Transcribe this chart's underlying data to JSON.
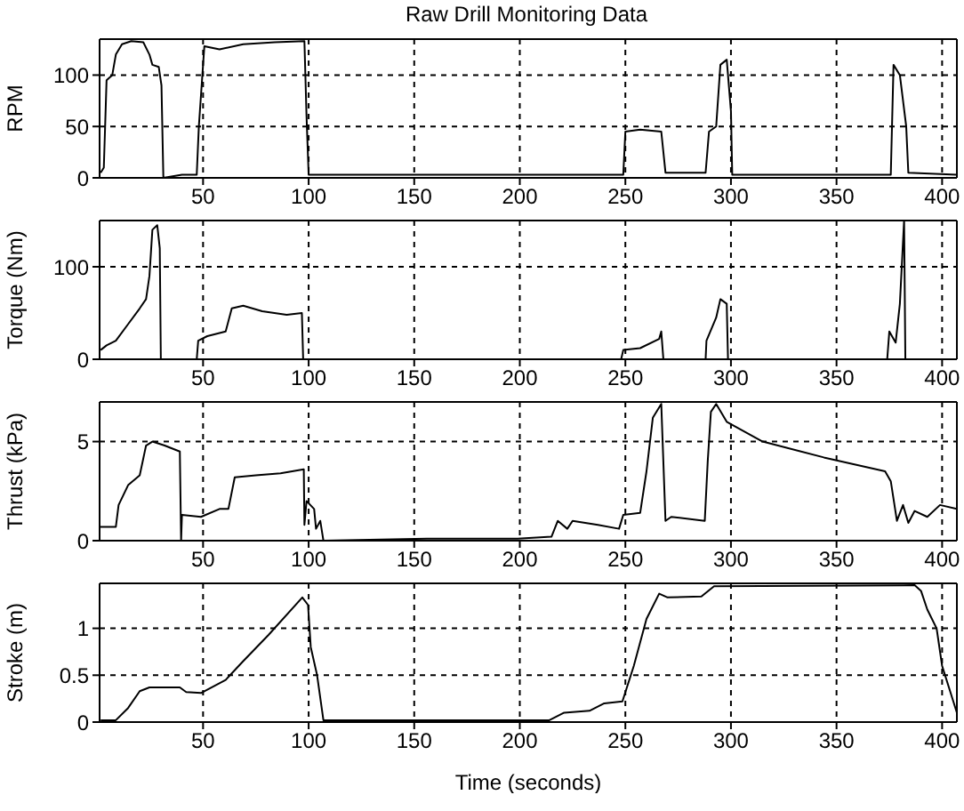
{
  "chart_data": [
    {
      "type": "line",
      "title": "Raw Drill Monitoring Data",
      "ylabel": "RPM",
      "xlim": [
        1,
        407
      ],
      "xticks": [
        50,
        100,
        150,
        200,
        250,
        300,
        350,
        400
      ],
      "ylim": [
        0,
        135
      ],
      "yticks": [
        0,
        50,
        100
      ],
      "grid": true,
      "x": [
        1.5,
        3,
        4.3,
        7,
        8.7,
        11.6,
        16,
        21.7,
        24.6,
        26,
        29,
        30.3,
        31.2,
        40,
        47,
        48,
        50.6,
        57.8,
        69,
        84,
        98,
        99,
        100,
        150,
        200,
        249,
        250,
        257,
        267,
        269,
        288,
        289.6,
        293,
        295,
        298,
        300,
        300.6,
        340,
        375.7,
        377,
        380,
        383,
        384,
        407
      ],
      "series": [
        {
          "color": "#000000",
          "values": [
            5,
            10,
            95,
            100,
            120,
            130,
            133,
            132,
            120,
            110,
            108,
            90,
            0,
            3,
            3,
            50,
            128,
            125,
            130,
            132,
            133,
            60,
            3,
            3,
            3,
            3,
            45,
            47,
            45,
            5,
            5,
            45,
            50,
            110,
            115,
            65,
            3,
            3,
            3,
            110,
            100,
            50,
            5,
            3
          ]
        }
      ]
    },
    {
      "type": "line",
      "ylabel": "Torque (Nm)",
      "xlim": [
        1,
        407
      ],
      "xticks": [
        50,
        100,
        150,
        200,
        250,
        300,
        350,
        400
      ],
      "ylim": [
        0,
        150
      ],
      "yticks": [
        0,
        100
      ],
      "grid": true,
      "x": [
        1.5,
        4.3,
        8.7,
        14.5,
        20,
        23,
        24.6,
        26,
        28.3,
        29.5,
        30,
        47,
        47.7,
        52,
        60.7,
        63.6,
        69,
        78,
        89.6,
        96.8,
        97.4,
        248,
        249,
        257,
        266,
        267,
        268,
        288,
        288.4,
        293,
        295,
        298,
        298.6,
        374,
        375,
        378,
        380,
        382,
        382.6,
        407
      ],
      "series": [
        {
          "color": "#000000",
          "values": [
            10,
            15,
            20,
            38,
            55,
            65,
            90,
            140,
            145,
            120,
            0,
            0,
            20,
            25,
            30,
            55,
            58,
            52,
            48,
            50,
            0,
            0,
            10,
            12,
            22,
            30,
            0,
            0,
            20,
            45,
            65,
            60,
            0,
            0,
            30,
            18,
            60,
            150,
            0,
            0
          ]
        }
      ]
    },
    {
      "type": "line",
      "ylabel": "Thrust (kPa)",
      "xlim": [
        1,
        407
      ],
      "xticks": [
        50,
        100,
        150,
        200,
        250,
        300,
        350,
        400
      ],
      "ylim": [
        0,
        7
      ],
      "yticks": [
        0,
        5
      ],
      "grid": true,
      "x": [
        1.4,
        8.7,
        10,
        14.5,
        20,
        23,
        26,
        31.8,
        39,
        39.6,
        40,
        49,
        57.8,
        62,
        65,
        75,
        86.7,
        97.7,
        98,
        99,
        102.6,
        103.5,
        105.5,
        107,
        156,
        199,
        215,
        218,
        222.5,
        225,
        237,
        247,
        249,
        257,
        260,
        263,
        267,
        269,
        271.7,
        287.6,
        289,
        290.5,
        293,
        298,
        315,
        344,
        373,
        375.7,
        378.6,
        381.5,
        384,
        387,
        393,
        399,
        407
      ],
      "series": [
        {
          "color": "#000000",
          "values": [
            0.7,
            0.7,
            1.8,
            2.8,
            3.3,
            4.8,
            5.0,
            4.8,
            4.5,
            0,
            1.3,
            1.2,
            1.6,
            1.6,
            3.2,
            3.3,
            3.4,
            3.6,
            0.8,
            2.0,
            1.6,
            0.6,
            1.0,
            0,
            0.1,
            0.1,
            0.2,
            1.0,
            0.6,
            1.0,
            0.8,
            0.6,
            1.3,
            1.4,
            3.5,
            6.2,
            6.9,
            1.0,
            1.2,
            1.0,
            4,
            6.5,
            6.9,
            6.0,
            5.0,
            4.2,
            3.5,
            3.0,
            1.0,
            1.8,
            0.9,
            1.5,
            1.2,
            1.8,
            1.6
          ]
        }
      ]
    },
    {
      "type": "line",
      "ylabel": "Stroke (m)",
      "xlabel": "Time (seconds)",
      "xlim": [
        1,
        407
      ],
      "xticks": [
        50,
        100,
        150,
        200,
        250,
        300,
        350,
        400
      ],
      "ylim": [
        0,
        1.48
      ],
      "yticks": [
        0,
        0.5,
        1
      ],
      "grid": true,
      "x": [
        1.5,
        8.7,
        14.5,
        20,
        24.6,
        39,
        42,
        49,
        60.7,
        69,
        81,
        97,
        99.7,
        101,
        104,
        107,
        214,
        221,
        233,
        240,
        248.6,
        254,
        260,
        266,
        270,
        286,
        292,
        387,
        390,
        393,
        397.4,
        400,
        407
      ],
      "series": [
        {
          "color": "#000000",
          "values": [
            0.02,
            0.02,
            0.15,
            0.33,
            0.37,
            0.37,
            0.32,
            0.31,
            0.45,
            0.65,
            0.93,
            1.33,
            1.25,
            0.8,
            0.5,
            0.02,
            0.02,
            0.1,
            0.12,
            0.2,
            0.22,
            0.6,
            1.1,
            1.37,
            1.33,
            1.34,
            1.45,
            1.46,
            1.4,
            1.2,
            1.0,
            0.6,
            0.1
          ]
        }
      ]
    }
  ]
}
